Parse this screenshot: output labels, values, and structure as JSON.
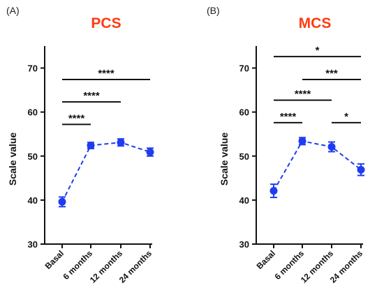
{
  "colors": {
    "title": "#ff3b0f",
    "series": "#1f3cf0",
    "axis": "#111111"
  },
  "chart_data": [
    {
      "panel": "(A)",
      "title": "PCS",
      "type": "line",
      "ylabel": "Scale value",
      "xlabel": "",
      "categories": [
        "Basal",
        "6 months",
        "12 months",
        "24 months"
      ],
      "ylim": [
        30,
        75
      ],
      "yticks": [
        30,
        40,
        50,
        60,
        70
      ],
      "series": [
        {
          "values": [
            39.6,
            52.4,
            53.1,
            50.9
          ],
          "errors": [
            1.1,
            0.7,
            0.8,
            0.9
          ]
        }
      ],
      "significance": [
        {
          "from": 0,
          "to": 1,
          "label": "****",
          "y": 57.2
        },
        {
          "from": 0,
          "to": 2,
          "label": "****",
          "y": 62.3
        },
        {
          "from": 0,
          "to": 3,
          "label": "****",
          "y": 67.4
        }
      ]
    },
    {
      "panel": "(B)",
      "title": "MCS",
      "type": "line",
      "ylabel": "Scale value",
      "xlabel": "",
      "categories": [
        "Basal",
        "6 months",
        "12 months",
        "24 months"
      ],
      "ylim": [
        30,
        75
      ],
      "yticks": [
        30,
        40,
        50,
        60,
        70
      ],
      "series": [
        {
          "values": [
            42.1,
            53.4,
            52.1,
            46.9
          ],
          "errors": [
            1.5,
            0.8,
            1.1,
            1.3
          ]
        }
      ],
      "significance": [
        {
          "from": 0,
          "to": 1,
          "label": "****",
          "y": 57.6
        },
        {
          "from": 2,
          "to": 3,
          "label": "*",
          "y": 57.6
        },
        {
          "from": 0,
          "to": 2,
          "label": "****",
          "y": 62.7
        },
        {
          "from": 1,
          "to": 3,
          "label": "***",
          "y": 67.4
        },
        {
          "from": 0,
          "to": 3,
          "label": "*",
          "y": 72.6
        }
      ]
    }
  ]
}
